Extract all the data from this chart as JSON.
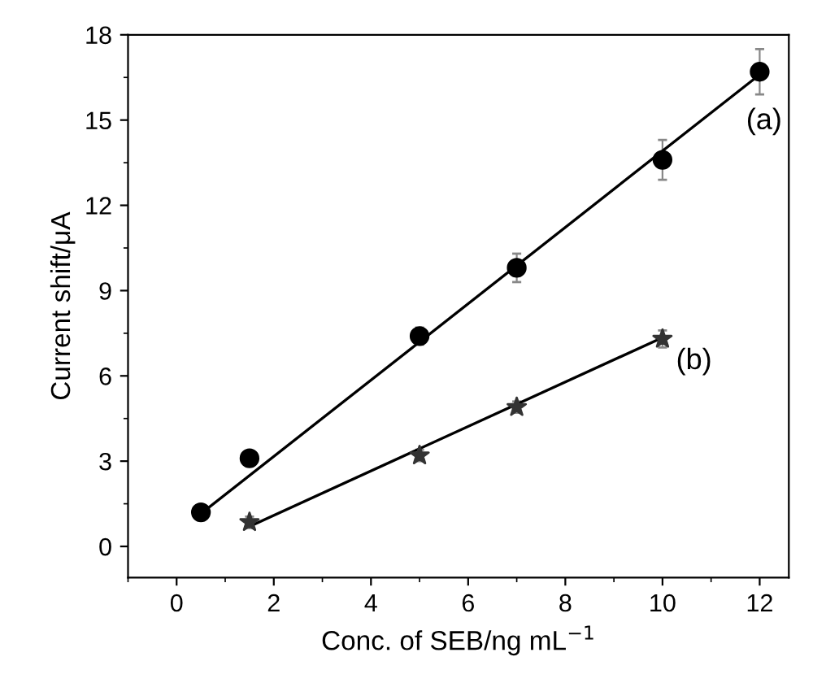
{
  "chart_data": {
    "type": "scatter",
    "xlabel": "Conc. of SEB/ng mL$^{−1}$",
    "ylabel": "Current shift/μA",
    "xlim": [
      -1,
      12.6
    ],
    "xticks": [
      0,
      2,
      4,
      6,
      8,
      10,
      12
    ],
    "ylim": [
      -1.1,
      18
    ],
    "yticks": [
      0,
      3,
      6,
      9,
      12,
      15,
      18
    ],
    "grid": false,
    "legend": false,
    "series": [
      {
        "name": "(a)",
        "marker": "circle",
        "color": "#000000",
        "x": [
          0.5,
          1.5,
          5,
          7,
          10,
          12
        ],
        "values": [
          1.2,
          3.1,
          7.4,
          9.8,
          13.6,
          16.7
        ],
        "errors": [
          0.2,
          0.2,
          0.3,
          0.5,
          0.7,
          0.8
        ]
      },
      {
        "name": "(b)",
        "marker": "star",
        "color": "#333333",
        "x": [
          1.5,
          5,
          7,
          10
        ],
        "values": [
          0.85,
          3.2,
          4.9,
          7.3
        ],
        "errors": [
          0.2,
          0.2,
          0.2,
          0.3
        ]
      },
      {
        "type": "line",
        "color": "#000000",
        "x": [
          0.5,
          12
        ],
        "values": [
          1.15,
          16.6
        ]
      },
      {
        "type": "line",
        "color": "#000000",
        "x": [
          1.5,
          10
        ],
        "values": [
          0.7,
          7.35
        ]
      }
    ]
  }
}
